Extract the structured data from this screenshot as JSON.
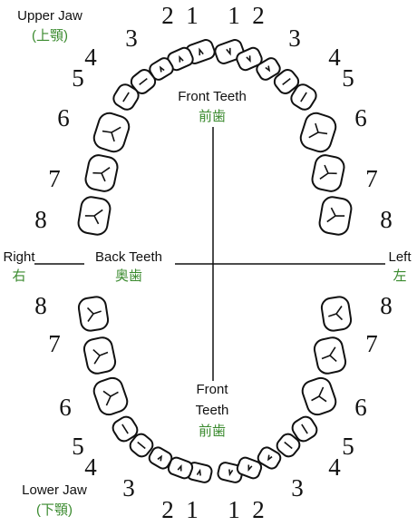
{
  "upper_jaw": {
    "label": "Upper Jaw",
    "label_ja": "(上顎)"
  },
  "lower_jaw": {
    "label": "Lower Jaw",
    "label_ja": "(下顎)"
  },
  "upper_front": {
    "label": "Front Teeth",
    "label_ja": "前歯"
  },
  "lower_front": {
    "label_line1": "Front",
    "label_line2": "Teeth",
    "label_ja": "前歯"
  },
  "back_teeth": {
    "label": "Back Teeth",
    "label_ja": "奥歯"
  },
  "right": {
    "label": "Right",
    "label_ja": "右"
  },
  "left": {
    "label": "Left",
    "label_ja": "左"
  },
  "tooth_numbers": {
    "upper": [
      "2",
      "1",
      "1",
      "2",
      "3",
      "3",
      "4",
      "5",
      "4",
      "5",
      "6",
      "6",
      "7",
      "7",
      "8",
      "8"
    ],
    "lower": [
      "8",
      "8",
      "7",
      "7",
      "6",
      "6",
      "5",
      "4",
      "5",
      "4",
      "3",
      "3",
      "2",
      "1",
      "1",
      "2"
    ]
  }
}
